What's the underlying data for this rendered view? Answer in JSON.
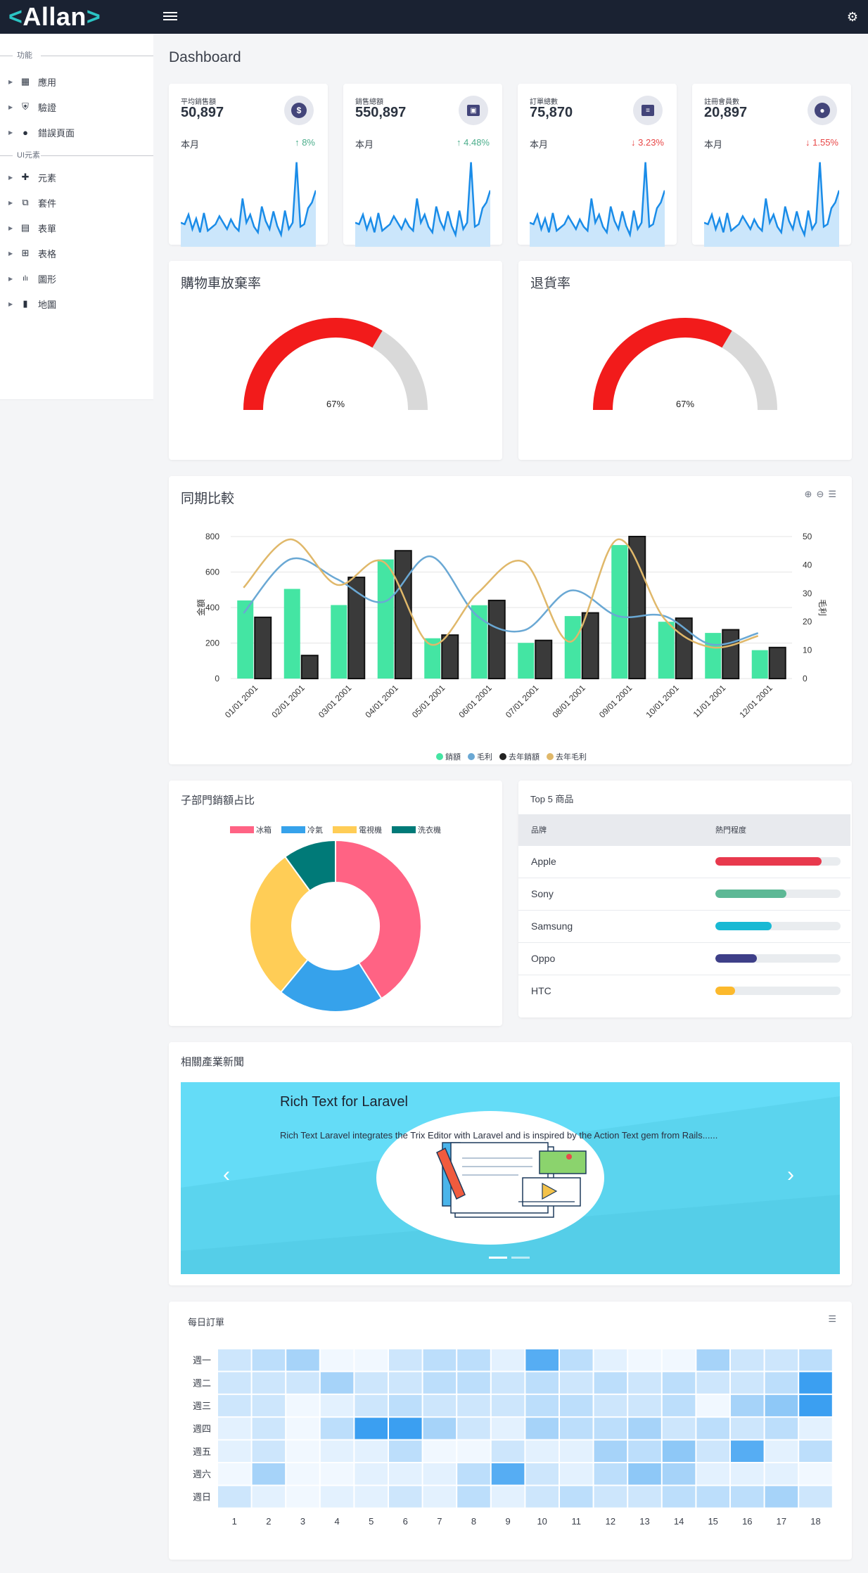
{
  "brand": {
    "name": "Allan"
  },
  "sidebar": {
    "sections": [
      {
        "title": "功能",
        "items": [
          {
            "label": "應用",
            "icon": "grid-icon"
          },
          {
            "label": "驗證",
            "icon": "shield-check-icon"
          },
          {
            "label": "錯誤頁面",
            "icon": "alert-circle-icon"
          }
        ]
      },
      {
        "title": "UI元素",
        "items": [
          {
            "label": "元素",
            "icon": "puzzle-icon"
          },
          {
            "label": "套件",
            "icon": "package-icon"
          },
          {
            "label": "表單",
            "icon": "clipboard-icon"
          },
          {
            "label": "表格",
            "icon": "table-icon"
          },
          {
            "label": "圖形",
            "icon": "bar-chart-icon"
          },
          {
            "label": "地圖",
            "icon": "map-icon"
          }
        ]
      }
    ]
  },
  "page": {
    "title": "Dashboard"
  },
  "stats": [
    {
      "label": "平均銷售額",
      "value": "50,897",
      "period": "本月",
      "change": "8%",
      "trend": "up",
      "icon": "dollar-icon"
    },
    {
      "label": "銷售總額",
      "value": "550,897",
      "period": "本月",
      "change": "4.48%",
      "trend": "up",
      "icon": "money-icon"
    },
    {
      "label": "訂單總數",
      "value": "75,870",
      "period": "本月",
      "change": "3.23%",
      "trend": "down",
      "icon": "receipt-icon"
    },
    {
      "label": "註冊會員數",
      "value": "20,897",
      "period": "本月",
      "change": "1.55%",
      "trend": "down",
      "icon": "user-icon"
    }
  ],
  "sparkline": [
    30,
    28,
    40,
    22,
    35,
    18,
    42,
    20,
    24,
    28,
    38,
    30,
    22,
    34,
    25,
    20,
    60,
    30,
    40,
    25,
    18,
    50,
    32,
    22,
    44,
    26,
    15,
    45,
    22,
    30,
    105,
    25,
    28,
    48,
    55,
    70
  ],
  "gauges": [
    {
      "title": "購物車放棄率",
      "percent": 67,
      "label": "67%"
    },
    {
      "title": "退貨率",
      "percent": 67,
      "label": "67%"
    }
  ],
  "colors": {
    "gauge_fill": "#f21b1b",
    "gauge_track": "#d9d9d9",
    "spark_line": "#1a8ce8",
    "spark_fill": "#cbe6fb",
    "sales": "#44e5a3",
    "profit": "#6aa8d4",
    "prev_sales": "#333333",
    "prev_profit": "#e0b86a"
  },
  "comparison": {
    "title": "同期比較",
    "chart_data": {
      "type": "bar",
      "categories": [
        "01/01 2001",
        "02/01 2001",
        "03/01 2001",
        "04/01 2001",
        "05/01 2001",
        "06/01 2001",
        "07/01 2001",
        "08/01 2001",
        "09/01 2001",
        "10/01 2001",
        "11/01 2001",
        "12/01 2001"
      ],
      "series": [
        {
          "name": "銷額",
          "type": "bar",
          "axis": "left",
          "values": [
            440,
            505,
            414,
            671,
            227,
            413,
            201,
            352,
            752,
            320,
            257,
            160
          ]
        },
        {
          "name": "毛利",
          "type": "line",
          "axis": "right",
          "values": [
            23,
            42,
            35,
            27,
            43,
            22,
            17,
            31,
            22,
            22,
            12,
            16
          ]
        },
        {
          "name": "去年銷額",
          "type": "bar",
          "axis": "left",
          "values": [
            345,
            130,
            570,
            720,
            245,
            440,
            215,
            370,
            800,
            340,
            275,
            175
          ]
        },
        {
          "name": "去年毛利",
          "type": "line",
          "axis": "right",
          "values": [
            32,
            49,
            33,
            41,
            12,
            30,
            41,
            13,
            49,
            21,
            11,
            15
          ]
        }
      ],
      "ylabel": "金額",
      "y2label": "毛利",
      "ylim": [
        0,
        800
      ],
      "y2lim": [
        0,
        50
      ],
      "yticks": [
        "0",
        "200",
        "400",
        "600",
        "800"
      ],
      "y2ticks": [
        "0",
        "10",
        "20",
        "30",
        "40",
        "50"
      ],
      "legend": "bottom"
    }
  },
  "dept": {
    "title": "子部門銷額占比",
    "chart_data": {
      "type": "pie",
      "labels": [
        "冰箱",
        "冷氣",
        "電視機",
        "洗衣機"
      ],
      "values": [
        41,
        20,
        29,
        10
      ],
      "colors": [
        "#ff6384",
        "#36a2eb",
        "#ffcd56",
        "#007a78"
      ],
      "legend": "top"
    }
  },
  "top5": {
    "title": "Top 5 商品",
    "columns": [
      "品牌",
      "熱門程度"
    ],
    "rows": [
      {
        "brand": "Apple",
        "popularity": 0.85,
        "color": "#e8394d"
      },
      {
        "brand": "Sony",
        "popularity": 0.57,
        "color": "#5cb895"
      },
      {
        "brand": "Samsung",
        "popularity": 0.45,
        "color": "#18b9d4"
      },
      {
        "brand": "Oppo",
        "popularity": 0.33,
        "color": "#3e3f88"
      },
      {
        "brand": "HTC",
        "popularity": 0.16,
        "color": "#fcb92c"
      }
    ]
  },
  "news": {
    "title": "相關產業新聞",
    "slide_title": "Rich Text for Laravel",
    "slide_text": "Rich Text Laravel integrates the Trix Editor with Laravel and is inspired by the Action Text gem from Rails......",
    "prev": "‹",
    "next": "›"
  },
  "daily": {
    "title": "每日訂單",
    "chart_data": {
      "type": "heatmap",
      "rows": [
        "週一",
        "週二",
        "週三",
        "週四",
        "週五",
        "週六",
        "週日"
      ],
      "columns": [
        "1",
        "2",
        "3",
        "4",
        "5",
        "6",
        "7",
        "8",
        "9",
        "10",
        "11",
        "12",
        "13",
        "14",
        "15",
        "16",
        "17",
        "18"
      ],
      "values": [
        [
          3,
          4,
          5,
          1,
          1,
          3,
          4,
          4,
          2,
          8,
          4,
          2,
          1,
          1,
          5,
          3,
          3,
          4
        ],
        [
          3,
          3,
          3,
          5,
          3,
          3,
          4,
          4,
          3,
          4,
          3,
          4,
          3,
          4,
          3,
          3,
          4,
          9
        ],
        [
          3,
          3,
          1,
          2,
          3,
          4,
          3,
          3,
          3,
          4,
          4,
          3,
          3,
          4,
          1,
          5,
          6,
          9
        ],
        [
          2,
          3,
          1,
          4,
          9,
          9,
          5,
          3,
          2,
          5,
          4,
          4,
          5,
          3,
          4,
          3,
          4,
          2
        ],
        [
          2,
          3,
          1,
          2,
          2,
          4,
          1,
          1,
          3,
          2,
          2,
          5,
          4,
          6,
          3,
          8,
          2,
          4
        ],
        [
          1,
          5,
          1,
          1,
          2,
          2,
          2,
          4,
          8,
          3,
          2,
          4,
          6,
          5,
          2,
          2,
          2,
          1
        ],
        [
          3,
          2,
          1,
          2,
          2,
          3,
          2,
          4,
          2,
          3,
          4,
          3,
          3,
          4,
          4,
          4,
          5,
          3
        ]
      ]
    }
  }
}
